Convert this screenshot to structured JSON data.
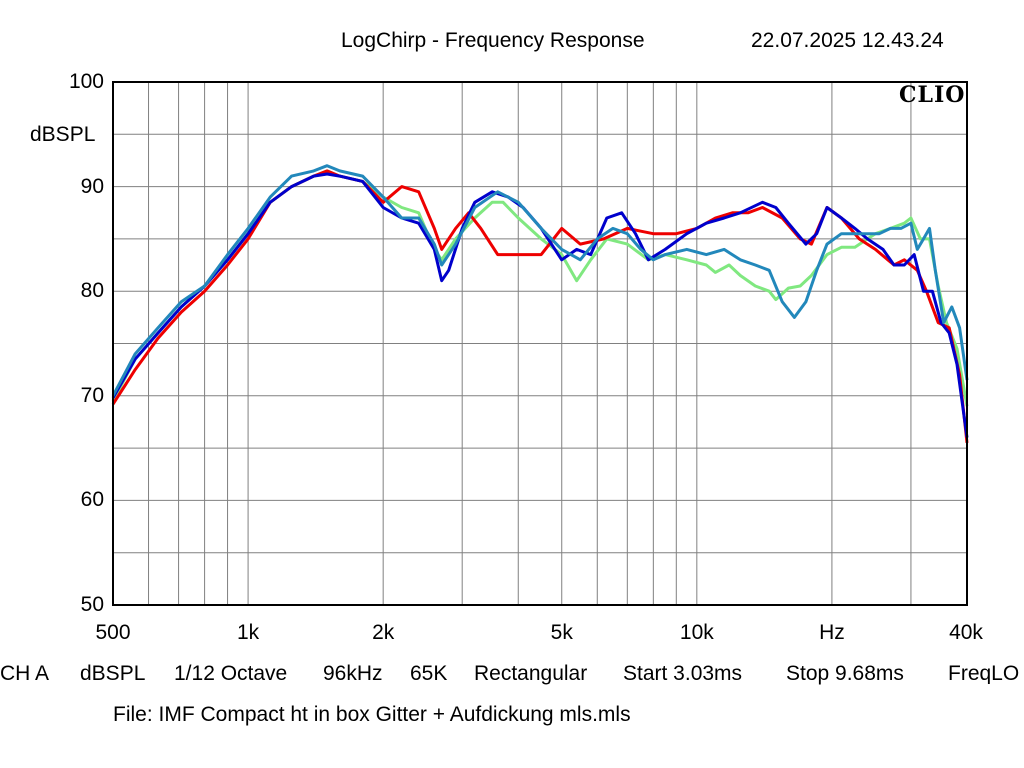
{
  "header": {
    "title": "LogChirp - Frequency Response",
    "datetime": "22.07.2025 12.43.24"
  },
  "logo": "CLIO",
  "footer": {
    "settings": [
      "CH A",
      "dBSPL",
      "1/12 Octave",
      "96kHz",
      "65K",
      "Rectangular",
      "Start 3.03ms",
      "Stop 9.68ms",
      "FreqLO"
    ],
    "file": "File: IMF Compact ht in box Gitter + Aufdickung mls.mls"
  },
  "chart_data": {
    "type": "line",
    "title": "LogChirp - Frequency Response",
    "xlabel": "Hz",
    "ylabel": "dBSPL",
    "xscale": "log",
    "xlim": [
      500,
      40000
    ],
    "ylim": [
      50,
      100
    ],
    "grid": true,
    "x_tick_labels": [
      {
        "value": 500,
        "label": "500"
      },
      {
        "value": 1000,
        "label": "1k"
      },
      {
        "value": 2000,
        "label": "2k"
      },
      {
        "value": 5000,
        "label": "5k"
      },
      {
        "value": 10000,
        "label": "10k"
      },
      {
        "value": 20000,
        "label": "Hz"
      },
      {
        "value": 40000,
        "label": "40k"
      }
    ],
    "y_tick_labels": [
      {
        "value": 100,
        "label": "100"
      },
      {
        "value": 90,
        "label": "90"
      },
      {
        "value": 80,
        "label": "80"
      },
      {
        "value": 70,
        "label": "70"
      },
      {
        "value": 60,
        "label": "60"
      },
      {
        "value": 50,
        "label": "50"
      }
    ],
    "series": [
      {
        "color": "#80e880",
        "points": [
          [
            500,
            69.5
          ],
          [
            560,
            73.5
          ],
          [
            630,
            76
          ],
          [
            710,
            78.5
          ],
          [
            800,
            80.5
          ],
          [
            900,
            83
          ],
          [
            1000,
            85.5
          ],
          [
            1120,
            88.5
          ],
          [
            1250,
            90
          ],
          [
            1400,
            91
          ],
          [
            1500,
            91.5
          ],
          [
            1600,
            91
          ],
          [
            1800,
            90.5
          ],
          [
            2000,
            89
          ],
          [
            2200,
            88
          ],
          [
            2400,
            87.5
          ],
          [
            2600,
            84
          ],
          [
            2700,
            83
          ],
          [
            2900,
            85
          ],
          [
            3200,
            87
          ],
          [
            3500,
            88.5
          ],
          [
            3700,
            88.5
          ],
          [
            4000,
            87
          ],
          [
            4500,
            85
          ],
          [
            5000,
            83.5
          ],
          [
            5400,
            81
          ],
          [
            5800,
            83
          ],
          [
            6300,
            85
          ],
          [
            7000,
            84.5
          ],
          [
            7800,
            83
          ],
          [
            8500,
            83.5
          ],
          [
            9500,
            83
          ],
          [
            10500,
            82.5
          ],
          [
            11000,
            81.8
          ],
          [
            11800,
            82.5
          ],
          [
            12500,
            81.5
          ],
          [
            13500,
            80.5
          ],
          [
            14500,
            80
          ],
          [
            15000,
            79.2
          ],
          [
            16000,
            80.3
          ],
          [
            17000,
            80.5
          ],
          [
            18000,
            81.5
          ],
          [
            19500,
            83.5
          ],
          [
            21000,
            84.2
          ],
          [
            22500,
            84.2
          ],
          [
            24000,
            85
          ],
          [
            25000,
            85.5
          ],
          [
            27000,
            86
          ],
          [
            29000,
            86.5
          ],
          [
            30000,
            87
          ],
          [
            31500,
            85
          ],
          [
            33000,
            85
          ],
          [
            34500,
            80.5
          ],
          [
            36000,
            77
          ],
          [
            38000,
            74.5
          ],
          [
            40000,
            69
          ]
        ]
      },
      {
        "color": "#ee0000",
        "points": [
          [
            500,
            69.2
          ],
          [
            560,
            72.5
          ],
          [
            630,
            75.5
          ],
          [
            710,
            78
          ],
          [
            800,
            80
          ],
          [
            900,
            82.5
          ],
          [
            1000,
            85
          ],
          [
            1120,
            88.5
          ],
          [
            1250,
            90
          ],
          [
            1400,
            91
          ],
          [
            1500,
            91.5
          ],
          [
            1600,
            91
          ],
          [
            1800,
            90.5
          ],
          [
            2000,
            88.5
          ],
          [
            2200,
            90
          ],
          [
            2400,
            89.5
          ],
          [
            2600,
            86
          ],
          [
            2700,
            84
          ],
          [
            2900,
            86
          ],
          [
            3100,
            87.5
          ],
          [
            3300,
            86
          ],
          [
            3600,
            83.5
          ],
          [
            4000,
            83.5
          ],
          [
            4500,
            83.5
          ],
          [
            5000,
            86
          ],
          [
            5500,
            84.5
          ],
          [
            6200,
            85
          ],
          [
            7000,
            86
          ],
          [
            8000,
            85.5
          ],
          [
            9000,
            85.5
          ],
          [
            10000,
            86
          ],
          [
            11000,
            87
          ],
          [
            12000,
            87.5
          ],
          [
            13000,
            87.5
          ],
          [
            14000,
            88
          ],
          [
            15500,
            87
          ],
          [
            17000,
            85
          ],
          [
            18000,
            84.5
          ],
          [
            19500,
            88
          ],
          [
            21000,
            87
          ],
          [
            23000,
            85
          ],
          [
            25000,
            84
          ],
          [
            27500,
            82.5
          ],
          [
            29000,
            83
          ],
          [
            31000,
            82
          ],
          [
            32500,
            80
          ],
          [
            34500,
            77
          ],
          [
            36500,
            76.5
          ],
          [
            38500,
            72
          ],
          [
            40000,
            65.5
          ]
        ]
      },
      {
        "color": "#0000cc",
        "points": [
          [
            500,
            69.8
          ],
          [
            560,
            73.5
          ],
          [
            630,
            76
          ],
          [
            710,
            78.5
          ],
          [
            800,
            80.5
          ],
          [
            900,
            83
          ],
          [
            1000,
            85.5
          ],
          [
            1120,
            88.5
          ],
          [
            1250,
            90
          ],
          [
            1400,
            91
          ],
          [
            1500,
            91.2
          ],
          [
            1600,
            91
          ],
          [
            1800,
            90.5
          ],
          [
            2000,
            88
          ],
          [
            2200,
            87
          ],
          [
            2400,
            86.5
          ],
          [
            2600,
            84
          ],
          [
            2700,
            81
          ],
          [
            2800,
            82
          ],
          [
            3000,
            86
          ],
          [
            3200,
            88.5
          ],
          [
            3500,
            89.5
          ],
          [
            3800,
            89
          ],
          [
            4100,
            88
          ],
          [
            4500,
            86
          ],
          [
            5000,
            83
          ],
          [
            5400,
            84
          ],
          [
            5800,
            83.5
          ],
          [
            6300,
            87
          ],
          [
            6800,
            87.5
          ],
          [
            7300,
            85.5
          ],
          [
            7800,
            83
          ],
          [
            8500,
            84
          ],
          [
            9500,
            85.5
          ],
          [
            10500,
            86.5
          ],
          [
            11500,
            87
          ],
          [
            12500,
            87.5
          ],
          [
            14000,
            88.5
          ],
          [
            15000,
            88
          ],
          [
            16000,
            86.5
          ],
          [
            17500,
            84.5
          ],
          [
            18500,
            85.5
          ],
          [
            19500,
            88
          ],
          [
            21000,
            87
          ],
          [
            22500,
            86
          ],
          [
            24000,
            85
          ],
          [
            26000,
            84
          ],
          [
            27500,
            82.5
          ],
          [
            29000,
            82.5
          ],
          [
            30500,
            83.5
          ],
          [
            32000,
            80
          ],
          [
            33500,
            80
          ],
          [
            35000,
            77
          ],
          [
            36500,
            76
          ],
          [
            38000,
            73
          ],
          [
            40000,
            66
          ]
        ]
      },
      {
        "color": "#2288bb",
        "points": [
          [
            500,
            70
          ],
          [
            560,
            74
          ],
          [
            630,
            76.5
          ],
          [
            710,
            79
          ],
          [
            800,
            80.5
          ],
          [
            900,
            83.5
          ],
          [
            1000,
            86
          ],
          [
            1120,
            89
          ],
          [
            1250,
            91
          ],
          [
            1400,
            91.5
          ],
          [
            1500,
            92
          ],
          [
            1600,
            91.5
          ],
          [
            1800,
            91
          ],
          [
            2000,
            89
          ],
          [
            2200,
            87
          ],
          [
            2400,
            87
          ],
          [
            2600,
            84.5
          ],
          [
            2700,
            82.5
          ],
          [
            2900,
            84.5
          ],
          [
            3200,
            88
          ],
          [
            3600,
            89.5
          ],
          [
            4000,
            88.5
          ],
          [
            4500,
            86
          ],
          [
            5000,
            84
          ],
          [
            5500,
            83
          ],
          [
            6000,
            85
          ],
          [
            6500,
            86
          ],
          [
            7000,
            85.5
          ],
          [
            7500,
            84
          ],
          [
            8000,
            83
          ],
          [
            8500,
            83.5
          ],
          [
            9500,
            84
          ],
          [
            10500,
            83.5
          ],
          [
            11500,
            84
          ],
          [
            12500,
            83
          ],
          [
            13500,
            82.5
          ],
          [
            14500,
            82
          ],
          [
            15500,
            79
          ],
          [
            16500,
            77.5
          ],
          [
            17500,
            79
          ],
          [
            18500,
            82
          ],
          [
            19500,
            84.5
          ],
          [
            21000,
            85.5
          ],
          [
            22500,
            85.5
          ],
          [
            24000,
            85.5
          ],
          [
            25500,
            85.5
          ],
          [
            27000,
            86
          ],
          [
            28500,
            86
          ],
          [
            30000,
            86.5
          ],
          [
            31000,
            84
          ],
          [
            32000,
            85
          ],
          [
            33000,
            86
          ],
          [
            34000,
            82
          ],
          [
            35500,
            77
          ],
          [
            37000,
            78.5
          ],
          [
            38500,
            76.5
          ],
          [
            40000,
            71.5
          ]
        ]
      }
    ]
  }
}
